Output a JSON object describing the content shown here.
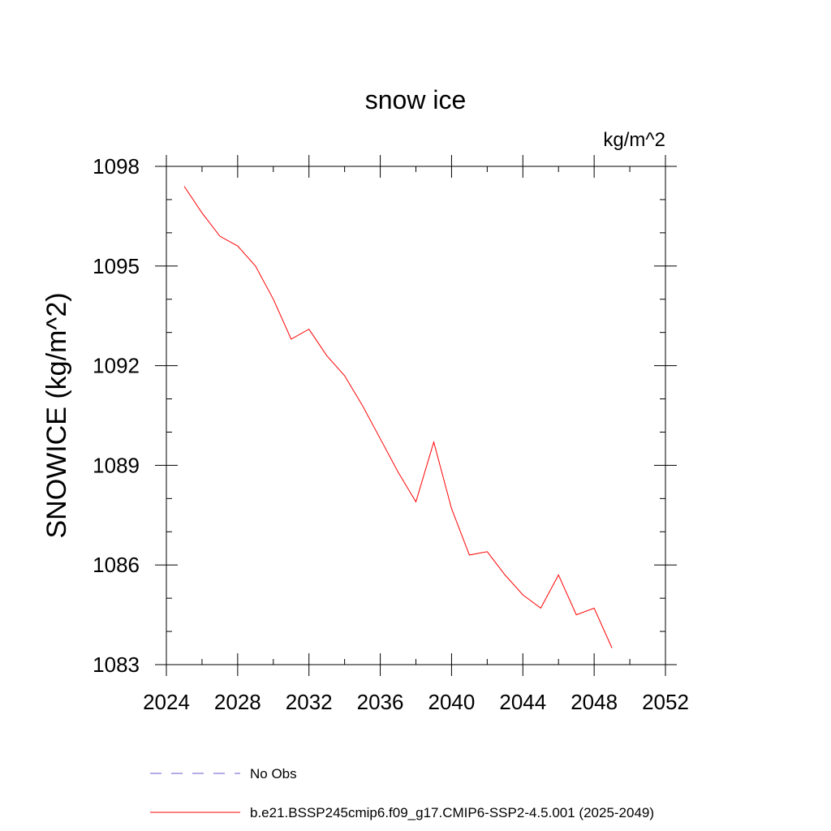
{
  "chart_data": {
    "type": "line",
    "title": "snow ice",
    "units_label": "kg/m^2",
    "ylabel": "SNOWICE  (kg/m^2)",
    "xlabel": "",
    "xlim": [
      2024,
      2052
    ],
    "ylim": [
      1083,
      1098
    ],
    "xticks": [
      2024,
      2028,
      2032,
      2036,
      2040,
      2044,
      2048,
      2052
    ],
    "yticks": [
      1083,
      1086,
      1089,
      1092,
      1095,
      1098
    ],
    "x_minor_step": 2,
    "y_minor_step": 1,
    "grid": false,
    "legend_position": "bottom",
    "series": [
      {
        "name": "b.e21.BSSP245cmip6.f09_g17.CMIP6-SSP2-4.5.001 (2025-2049)",
        "color": "#ff0000",
        "dash": "solid",
        "x": [
          2025,
          2026,
          2027,
          2028,
          2029,
          2030,
          2031,
          2032,
          2033,
          2034,
          2035,
          2036,
          2037,
          2038,
          2039,
          2040,
          2041,
          2042,
          2043,
          2044,
          2045,
          2046,
          2047,
          2048,
          2049
        ],
        "y": [
          1097.4,
          1096.6,
          1095.9,
          1095.6,
          1095.0,
          1094.0,
          1092.8,
          1093.1,
          1092.3,
          1091.7,
          1090.8,
          1089.8,
          1088.8,
          1087.9,
          1089.7,
          1087.7,
          1086.3,
          1086.4,
          1085.7,
          1085.1,
          1084.7,
          1085.7,
          1084.5,
          1084.7,
          1083.5
        ]
      }
    ],
    "legend": [
      {
        "label": "No Obs",
        "color": "#6a5acd",
        "dash": "dashed"
      },
      {
        "label": "b.e21.BSSP245cmip6.f09_g17.CMIP6-SSP2-4.5.001 (2025-2049)",
        "color": "#ff0000",
        "dash": "solid"
      }
    ]
  }
}
